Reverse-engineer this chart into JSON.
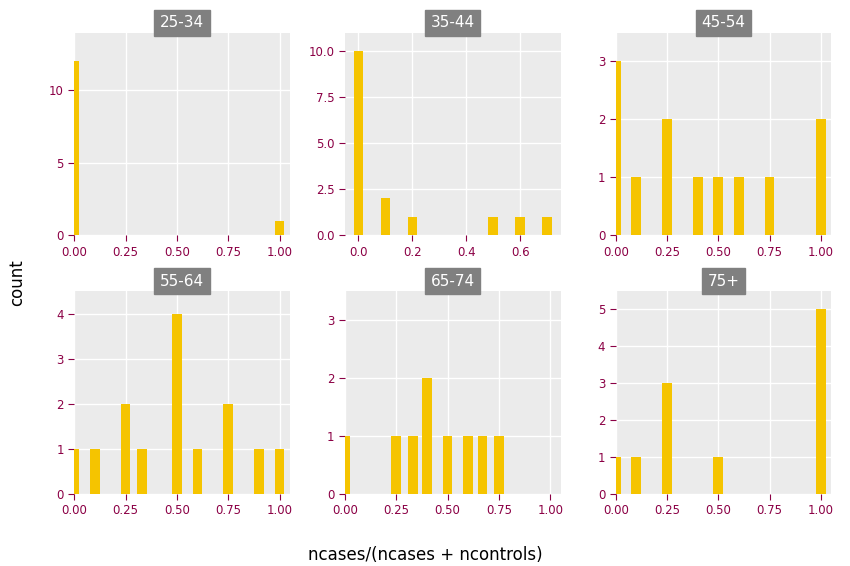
{
  "groups": [
    "25-34",
    "35-44",
    "45-54",
    "55-64",
    "65-74",
    "75+"
  ],
  "bar_color": "#F5C400",
  "bg_color": "#EBEBEB",
  "title_bg_color": "#808080",
  "title_text_color": "white",
  "tick_color": "#8B0045",
  "xlabel": "ncases/(ncases + ncontrols)",
  "ylabel": "count",
  "data": {
    "25-34": {
      "values": [
        0.0,
        1.0
      ],
      "counts": [
        12,
        1
      ],
      "xlim": [
        0.0,
        1.05
      ],
      "ylim": [
        0,
        14
      ],
      "yticks": [
        0,
        5,
        10
      ],
      "xticks": [
        0.0,
        0.25,
        0.5,
        0.75,
        1.0
      ]
    },
    "35-44": {
      "values": [
        0.0,
        0.1,
        0.2,
        0.5,
        0.6,
        0.7
      ],
      "counts": [
        10,
        2,
        1,
        1,
        1,
        1
      ],
      "xlim": [
        -0.05,
        0.75
      ],
      "ylim": [
        0,
        11
      ],
      "yticks": [
        0.0,
        2.5,
        5.0,
        7.5,
        10.0
      ],
      "xticks": [
        0.0,
        0.2,
        0.4,
        0.6
      ]
    },
    "45-54": {
      "values": [
        0.0,
        0.1,
        0.25,
        0.4,
        0.5,
        0.6,
        0.75,
        1.0
      ],
      "counts": [
        3,
        1,
        2,
        1,
        1,
        1,
        1,
        2
      ],
      "xlim": [
        0.0,
        1.05
      ],
      "ylim": [
        0,
        3.5
      ],
      "yticks": [
        0,
        1,
        2,
        3
      ],
      "xticks": [
        0.0,
        0.25,
        0.5,
        0.75,
        1.0
      ]
    },
    "55-64": {
      "values": [
        0.0,
        0.1,
        0.25,
        0.33,
        0.5,
        0.6,
        0.75,
        0.9,
        1.0
      ],
      "counts": [
        1,
        1,
        2,
        1,
        4,
        1,
        2,
        1,
        1
      ],
      "xlim": [
        0.0,
        1.05
      ],
      "ylim": [
        0,
        4.5
      ],
      "yticks": [
        0,
        1,
        2,
        3,
        4
      ],
      "xticks": [
        0.0,
        0.25,
        0.5,
        0.75,
        1.0
      ]
    },
    "65-74": {
      "values": [
        0.0,
        0.25,
        0.33,
        0.4,
        0.5,
        0.6,
        0.67,
        0.75
      ],
      "counts": [
        1,
        1,
        1,
        2,
        1,
        1,
        1,
        1
      ],
      "xlim": [
        0.0,
        1.05
      ],
      "ylim": [
        0,
        3.5
      ],
      "yticks": [
        0,
        1,
        2,
        3
      ],
      "xticks": [
        0.0,
        0.25,
        0.5,
        0.75,
        1.0
      ]
    },
    "75+": {
      "values": [
        0.0,
        0.1,
        0.25,
        0.5,
        1.0
      ],
      "counts": [
        1,
        1,
        3,
        1,
        5
      ],
      "xlim": [
        0.0,
        1.05
      ],
      "ylim": [
        0,
        5.5
      ],
      "yticks": [
        0,
        1,
        2,
        3,
        4,
        5
      ],
      "xticks": [
        0.0,
        0.25,
        0.5,
        0.75,
        1.0
      ]
    }
  }
}
